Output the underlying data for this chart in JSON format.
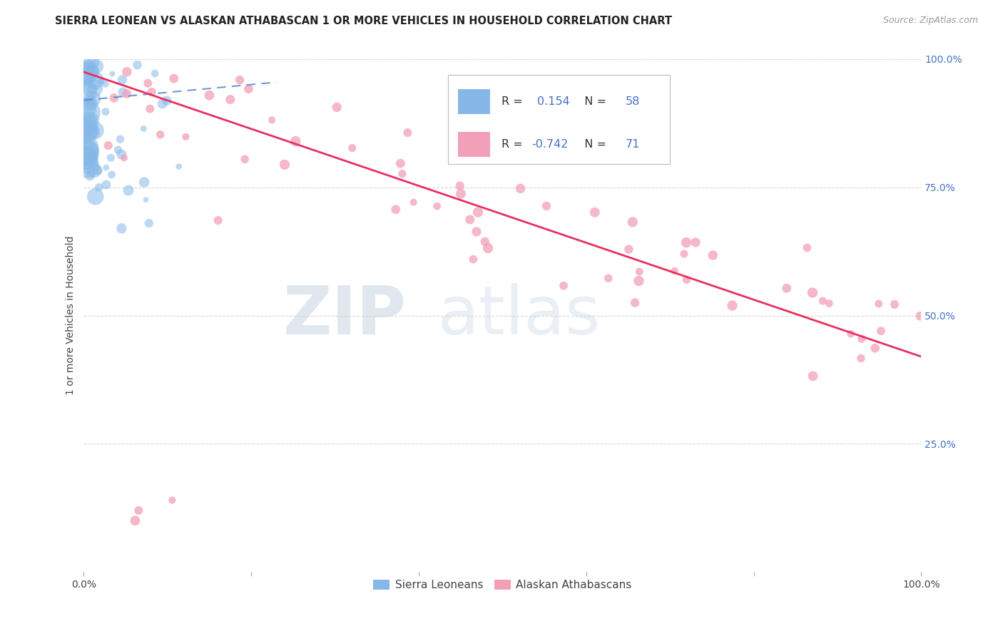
{
  "title": "SIERRA LEONEAN VS ALASKAN ATHABASCAN 1 OR MORE VEHICLES IN HOUSEHOLD CORRELATION CHART",
  "source": "Source: ZipAtlas.com",
  "ylabel": "1 or more Vehicles in Household",
  "legend_label1": "Sierra Leoneans",
  "legend_label2": "Alaskan Athabascans",
  "r1": "0.154",
  "n1": "58",
  "r2": "-0.742",
  "n2": "71",
  "color_blue": "#85b8e8",
  "color_pink": "#f2a0b8",
  "line_blue": "#5588cc",
  "line_pink": "#e83060",
  "watermark_zip": "ZIP",
  "watermark_atlas": "atlas",
  "background_color": "#ffffff",
  "grid_color": "#d8d8d8",
  "title_color": "#222222",
  "source_color": "#999999",
  "ylabel_color": "#444444",
  "right_tick_color": "#4472c4",
  "legend_text_color": "#333333",
  "legend_value_color": "#4472c4"
}
